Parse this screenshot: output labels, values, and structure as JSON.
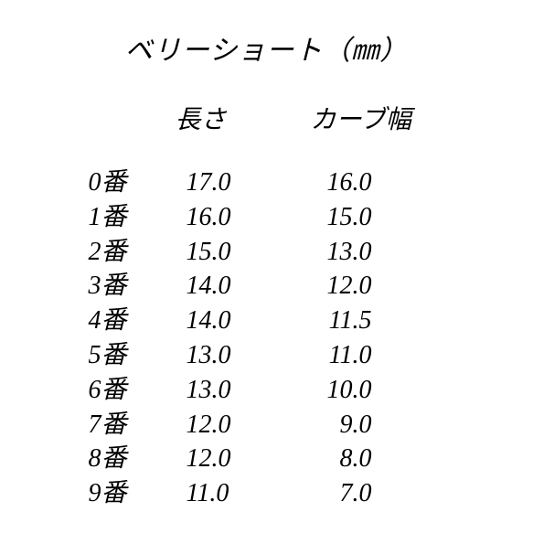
{
  "title": "ベリーショート（㎜）",
  "headers": {
    "length": "長さ",
    "curve": "カーブ幅"
  },
  "rows": [
    {
      "label": "0番",
      "length": "17.0",
      "curve": "16.0"
    },
    {
      "label": "1番",
      "length": "16.0",
      "curve": "15.0"
    },
    {
      "label": "2番",
      "length": "15.0",
      "curve": "13.0"
    },
    {
      "label": "3番",
      "length": "14.0",
      "curve": "12.0"
    },
    {
      "label": "4番",
      "length": "14.0",
      "curve": "11.5"
    },
    {
      "label": "5番",
      "length": "13.0",
      "curve": "11.0"
    },
    {
      "label": "6番",
      "length": "13.0",
      "curve": "10.0"
    },
    {
      "label": "7番",
      "length": "12.0",
      "curve": "9.0"
    },
    {
      "label": "8番",
      "length": "12.0",
      "curve": "8.0"
    },
    {
      "label": "9番",
      "length": "11.0",
      "curve": "7.0"
    }
  ],
  "styling": {
    "font_family": "serif-italic",
    "font_style": "italic",
    "title_fontsize": 30,
    "header_fontsize": 28,
    "row_fontsize": 28,
    "text_color": "#000000",
    "background_color": "#ffffff",
    "line_height": 1.35
  }
}
